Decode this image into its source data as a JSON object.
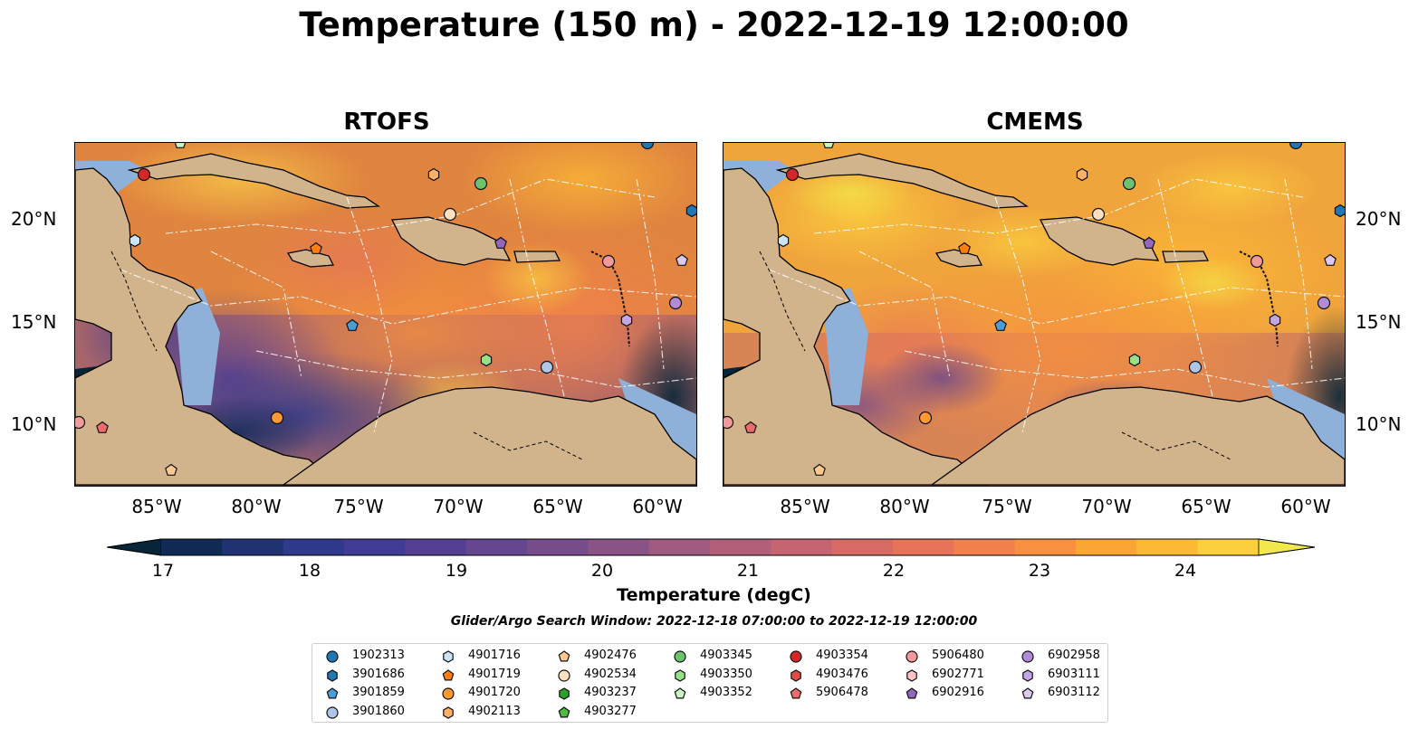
{
  "title": "Temperature (150 m) - 2022-12-19 12:00:00",
  "panels": [
    {
      "title": "RTOFS",
      "palette_bias": "warm-dark"
    },
    {
      "title": "CMEMS",
      "palette_bias": "warm"
    }
  ],
  "y_ticks": [
    "20°N",
    "15°N",
    "10°N"
  ],
  "x_ticks": [
    "85°W",
    "80°W",
    "75°W",
    "70°W",
    "65°W",
    "60°W"
  ],
  "colorbar": {
    "label": "Temperature (degC)",
    "ticks": [
      "17",
      "18",
      "19",
      "20",
      "21",
      "22",
      "23",
      "24"
    ],
    "colors": [
      "#062538",
      "#0f2a55",
      "#213373",
      "#2f3a8c",
      "#403b94",
      "#543f93",
      "#66468f",
      "#774c8a",
      "#8a5385",
      "#9e5a7f",
      "#b25f79",
      "#c66571",
      "#d86b66",
      "#e77459",
      "#f2804c",
      "#f8903f",
      "#fba535",
      "#fdb935",
      "#fbcf3e",
      "#f2e84b"
    ]
  },
  "search_window": "Glider/Argo Search Window: 2022-12-18 07:00:00 to 2022-12-19 12:00:00",
  "legend": [
    [
      {
        "id": "1902313",
        "color": "#1f77b4",
        "shape": "circle"
      },
      {
        "id": "3901686",
        "color": "#1f77b4",
        "shape": "hexagon"
      },
      {
        "id": "3901859",
        "color": "#4a9ed8",
        "shape": "pentagon"
      },
      {
        "id": "3901860",
        "color": "#aec7e8",
        "shape": "circle"
      }
    ],
    [
      {
        "id": "4901716",
        "color": "#cce5f6",
        "shape": "hexagon"
      },
      {
        "id": "4901719",
        "color": "#ff7f0e",
        "shape": "pentagon"
      },
      {
        "id": "4901720",
        "color": "#ff9934",
        "shape": "circle"
      },
      {
        "id": "4902113",
        "color": "#ffb066",
        "shape": "hexagon"
      }
    ],
    [
      {
        "id": "4902476",
        "color": "#ffc891",
        "shape": "pentagon"
      },
      {
        "id": "4902534",
        "color": "#ffe0c0",
        "shape": "circle"
      },
      {
        "id": "4903237",
        "color": "#2ca02c",
        "shape": "hexagon"
      },
      {
        "id": "4903277",
        "color": "#4cbd3c",
        "shape": "pentagon"
      }
    ],
    [
      {
        "id": "4903345",
        "color": "#6cc36c",
        "shape": "circle"
      },
      {
        "id": "4903350",
        "color": "#98df8a",
        "shape": "hexagon"
      },
      {
        "id": "4903352",
        "color": "#c8f5c0",
        "shape": "pentagon"
      }
    ],
    [
      {
        "id": "4903354",
        "color": "#d62728",
        "shape": "circle"
      },
      {
        "id": "4903476",
        "color": "#e04a4a",
        "shape": "hexagon"
      },
      {
        "id": "5906478",
        "color": "#ee6b6b",
        "shape": "pentagon"
      }
    ],
    [
      {
        "id": "5906480",
        "color": "#f29a9a",
        "shape": "circle"
      },
      {
        "id": "6902771",
        "color": "#fac4c4",
        "shape": "hexagon"
      },
      {
        "id": "6902916",
        "color": "#9467bd",
        "shape": "pentagon"
      }
    ],
    [
      {
        "id": "6902958",
        "color": "#b28ad6",
        "shape": "circle"
      },
      {
        "id": "6903111",
        "color": "#c5a5e3",
        "shape": "hexagon"
      },
      {
        "id": "6903112",
        "color": "#dcc8f0",
        "shape": "pentagon"
      }
    ]
  ]
}
